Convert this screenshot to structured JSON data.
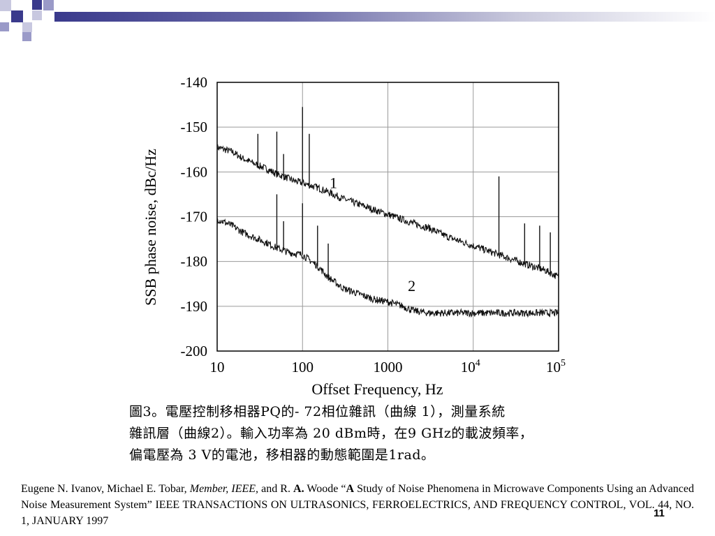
{
  "slide": {
    "caption_lines": [
      "圖3。電壓控制移相器PQ的- 72相位雜訊（曲線 1），測量系統",
      "雜訊層（曲線2）。輸入功率為 20 dBm時，在9 GHz的載波頻率，",
      "偏電壓為 3 V的電池，移相器的動態範圍是1rad。"
    ],
    "reference": {
      "authors": "Eugene N. Ivanov, Michael E. Tobar, ",
      "member": "Member, IEEE,",
      "and_r": " and R. ",
      "a_initial": "A.",
      "woode": " Woode “",
      "a_word": "A",
      "title_rest": " Study of Noise Phenomena in Microwave Components Using an Advanced Noise Measurement System” IEEE TRANSACTIONS ON ULTRASONICS, FERROELECTRICS, AND FREQUENCY CONTROL, VOL. 44, NO. 1, JANUARY 1997"
    },
    "page_number": "11",
    "accent_color": "#3a3a8c",
    "decor_colors": [
      "#3a3a8c",
      "#9a9ac8",
      "#c8c8e0"
    ]
  },
  "chart_data": {
    "type": "line",
    "title": "",
    "xlabel": "Offset Frequency, Hz",
    "ylabel": "SSB phase noise, dBc/Hz",
    "x_scale": "log",
    "xlim": [
      10,
      100000
    ],
    "ylim": [
      -200,
      -140
    ],
    "x_tick_labels": [
      {
        "value": 10,
        "label": "10"
      },
      {
        "value": 100,
        "label": "100"
      },
      {
        "value": 1000,
        "label": "1000"
      },
      {
        "value": 10000,
        "base": "10",
        "exp": "4"
      },
      {
        "value": 100000,
        "base": "10",
        "exp": "5"
      }
    ],
    "y_ticks": [
      -140,
      -150,
      -160,
      -170,
      -180,
      -190,
      -200
    ],
    "grid": true,
    "annotations": [
      {
        "text": "1",
        "x": 230,
        "y": -162.5
      },
      {
        "text": "2",
        "x": 1900,
        "y": -185.5
      }
    ],
    "series": [
      {
        "label": "1",
        "x": [
          10,
          15,
          20,
          30,
          40,
          50,
          60,
          80,
          100,
          150,
          200,
          300,
          500,
          700,
          1000,
          2000,
          3000,
          5000,
          10000,
          20000,
          40000,
          70000,
          100000
        ],
        "y": [
          -154.5,
          -155.5,
          -157,
          -158.5,
          -159.5,
          -160.5,
          -161,
          -162,
          -162.5,
          -163.5,
          -164.5,
          -166,
          -167.5,
          -168.5,
          -169.5,
          -171.5,
          -172.5,
          -174.5,
          -176.5,
          -178.5,
          -180.5,
          -182,
          -183.5
        ],
        "spurs": [
          {
            "x": 30,
            "y": -151.5
          },
          {
            "x": 50,
            "y": -151
          },
          {
            "x": 60,
            "y": -156
          },
          {
            "x": 100,
            "y": -145.5
          },
          {
            "x": 120,
            "y": -151.5
          },
          {
            "x": 20000,
            "y": -161
          },
          {
            "x": 40000,
            "y": -171.5
          },
          {
            "x": 60000,
            "y": -172
          },
          {
            "x": 80000,
            "y": -173.5
          }
        ]
      },
      {
        "label": "2",
        "x": [
          10,
          15,
          20,
          30,
          40,
          50,
          70,
          100,
          150,
          200,
          300,
          500,
          700,
          1000,
          1500,
          2000,
          3000,
          5000,
          10000,
          20000,
          50000,
          100000
        ],
        "y": [
          -170.5,
          -172,
          -173.5,
          -175,
          -176,
          -177,
          -178,
          -178.5,
          -181,
          -183.5,
          -186,
          -187.5,
          -188.5,
          -189,
          -190,
          -191,
          -191.5,
          -191.5,
          -191.5,
          -191.5,
          -191.5,
          -191.5
        ],
        "spurs": [
          {
            "x": 50,
            "y": -165
          },
          {
            "x": 60,
            "y": -171
          },
          {
            "x": 100,
            "y": -167
          },
          {
            "x": 150,
            "y": -172
          },
          {
            "x": 200,
            "y": -176
          }
        ]
      }
    ]
  }
}
